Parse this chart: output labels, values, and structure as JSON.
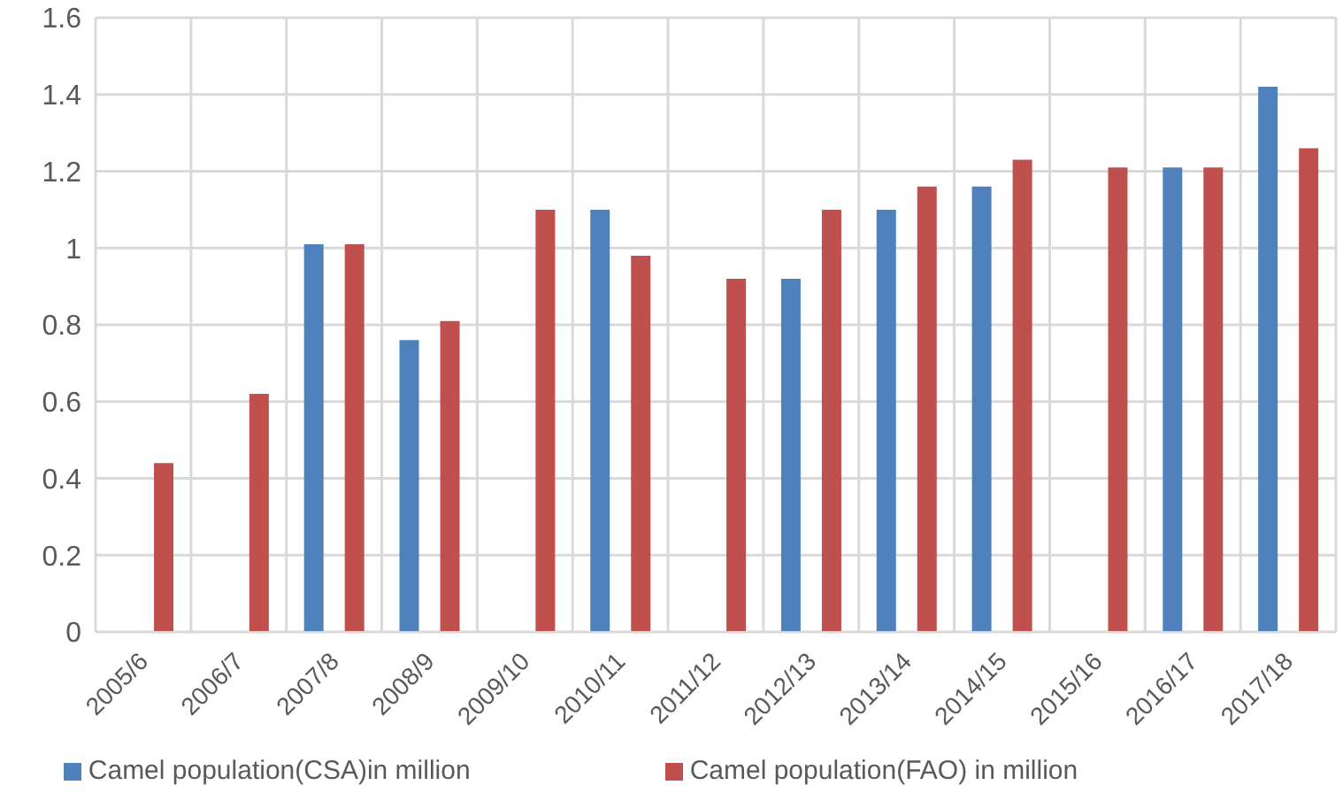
{
  "chart_data": {
    "type": "bar",
    "categories": [
      "2005/6",
      "2006/7",
      "2007/8",
      "2008/9",
      "2009/10",
      "2010/11",
      "2011/12",
      "2012/13",
      "2013/14",
      "2014/15",
      "2015/16",
      "2016/17",
      "2017/18"
    ],
    "series": [
      {
        "name": "Camel population(CSA)in million",
        "color": "#4f81bd",
        "values": [
          null,
          null,
          1.01,
          0.76,
          null,
          1.1,
          null,
          0.92,
          1.1,
          1.16,
          null,
          1.21,
          1.42
        ]
      },
      {
        "name": "Camel population(FAO) in million",
        "color": "#c0504d",
        "values": [
          0.44,
          0.62,
          1.01,
          0.81,
          1.1,
          0.98,
          0.92,
          1.1,
          1.16,
          1.23,
          1.21,
          1.21,
          1.26
        ]
      }
    ],
    "ylim": [
      0,
      1.6
    ],
    "yticks": [
      0,
      0.2,
      0.4,
      0.6,
      0.8,
      1,
      1.2,
      1.4,
      1.6
    ],
    "grid": true,
    "legend": "bottom"
  }
}
